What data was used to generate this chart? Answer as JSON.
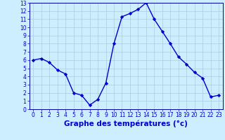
{
  "hours": [
    0,
    1,
    2,
    3,
    4,
    5,
    6,
    7,
    8,
    9,
    10,
    11,
    12,
    13,
    14,
    15,
    16,
    17,
    18,
    19,
    20,
    21,
    22,
    23
  ],
  "temps": [
    6.0,
    6.2,
    5.7,
    4.8,
    4.3,
    2.0,
    1.7,
    0.5,
    1.2,
    3.2,
    8.0,
    11.3,
    11.7,
    12.2,
    13.0,
    11.0,
    9.5,
    8.0,
    6.4,
    5.5,
    4.5,
    3.8,
    1.5,
    1.7
  ],
  "line_color": "#0000cc",
  "marker": "D",
  "marker_size": 2.2,
  "bg_color": "#cceeff",
  "grid_color": "#aaccdd",
  "xlabel": "Graphe des températures (°c)",
  "xlabel_color": "#0000cc",
  "tick_color": "#0000cc",
  "ylim": [
    0,
    13
  ],
  "xlim": [
    -0.5,
    23.5
  ],
  "yticks": [
    0,
    1,
    2,
    3,
    4,
    5,
    6,
    7,
    8,
    9,
    10,
    11,
    12,
    13
  ],
  "xticks": [
    0,
    1,
    2,
    3,
    4,
    5,
    6,
    7,
    8,
    9,
    10,
    11,
    12,
    13,
    14,
    15,
    16,
    17,
    18,
    19,
    20,
    21,
    22,
    23
  ],
  "spine_color": "#0000aa",
  "line_width": 1.0,
  "tick_label_size": 5.5,
  "xlabel_size": 7.5
}
